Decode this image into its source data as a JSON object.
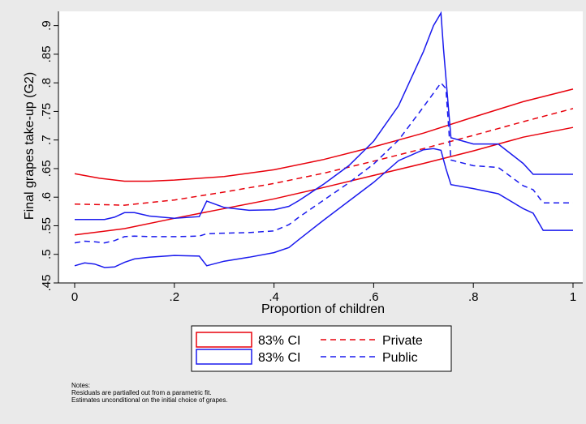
{
  "chart_data": {
    "type": "line",
    "xlabel": "Proportion of children",
    "ylabel": "Final grapes take-up (G2)",
    "xlim": [
      0,
      1
    ],
    "ylim": [
      0.45,
      0.925
    ],
    "xticks": [
      0,
      0.2,
      0.4,
      0.6,
      0.8,
      1
    ],
    "xtick_labels": [
      "0",
      ".2",
      ".4",
      ".6",
      ".8",
      "1"
    ],
    "yticks": [
      0.45,
      0.5,
      0.55,
      0.6,
      0.65,
      0.7,
      0.75,
      0.8,
      0.85,
      0.9
    ],
    "ytick_labels": [
      ".45",
      ".5",
      ".55",
      ".6",
      ".65",
      ".7",
      ".75",
      ".8",
      ".85",
      ".9"
    ],
    "grid": false,
    "series": [
      {
        "name": "Private",
        "role": "estimate",
        "color": "#e8000b",
        "dash": true,
        "x": [
          0,
          0.1,
          0.2,
          0.3,
          0.4,
          0.5,
          0.6,
          0.7,
          0.8,
          0.9,
          1.0
        ],
        "y": [
          0.588,
          0.586,
          0.595,
          0.609,
          0.624,
          0.642,
          0.663,
          0.685,
          0.708,
          0.732,
          0.755
        ]
      },
      {
        "name": "83% CI",
        "role": "ci-upper",
        "group": "Private",
        "color": "#e8000b",
        "x": [
          0,
          0.05,
          0.1,
          0.15,
          0.2,
          0.3,
          0.4,
          0.5,
          0.6,
          0.7,
          0.8,
          0.9,
          1.0
        ],
        "y": [
          0.641,
          0.633,
          0.628,
          0.628,
          0.63,
          0.636,
          0.648,
          0.666,
          0.688,
          0.712,
          0.74,
          0.767,
          0.789
        ]
      },
      {
        "name": "83% CI",
        "role": "ci-lower",
        "group": "Private",
        "color": "#e8000b",
        "x": [
          0,
          0.1,
          0.2,
          0.3,
          0.4,
          0.5,
          0.6,
          0.7,
          0.8,
          0.9,
          1.0
        ],
        "y": [
          0.534,
          0.545,
          0.563,
          0.58,
          0.597,
          0.617,
          0.638,
          0.659,
          0.681,
          0.705,
          0.722
        ]
      },
      {
        "name": "Public",
        "role": "estimate",
        "color": "#1a1aee",
        "dash": true,
        "x": [
          0,
          0.02,
          0.04,
          0.06,
          0.08,
          0.1,
          0.12,
          0.15,
          0.2,
          0.25,
          0.265,
          0.3,
          0.35,
          0.4,
          0.43,
          0.45,
          0.5,
          0.55,
          0.6,
          0.65,
          0.7,
          0.72,
          0.735,
          0.745,
          0.755,
          0.8,
          0.85,
          0.9,
          0.92,
          0.94,
          1.0
        ],
        "y": [
          0.52,
          0.523,
          0.522,
          0.52,
          0.524,
          0.531,
          0.532,
          0.531,
          0.531,
          0.532,
          0.536,
          0.537,
          0.538,
          0.541,
          0.552,
          0.565,
          0.595,
          0.625,
          0.658,
          0.7,
          0.758,
          0.782,
          0.8,
          0.79,
          0.665,
          0.655,
          0.652,
          0.62,
          0.613,
          0.59,
          0.59
        ]
      },
      {
        "name": "83% CI",
        "role": "ci-upper",
        "group": "Public",
        "color": "#1a1aee",
        "x": [
          0,
          0.06,
          0.08,
          0.1,
          0.12,
          0.15,
          0.2,
          0.25,
          0.265,
          0.3,
          0.35,
          0.4,
          0.43,
          0.45,
          0.5,
          0.55,
          0.6,
          0.65,
          0.7,
          0.72,
          0.735,
          0.74,
          0.755,
          0.8,
          0.85,
          0.9,
          0.92,
          0.94,
          1.0
        ],
        "y": [
          0.561,
          0.561,
          0.565,
          0.573,
          0.573,
          0.567,
          0.563,
          0.566,
          0.593,
          0.582,
          0.577,
          0.578,
          0.584,
          0.594,
          0.623,
          0.655,
          0.698,
          0.76,
          0.855,
          0.9,
          0.922,
          0.86,
          0.704,
          0.693,
          0.693,
          0.659,
          0.64,
          0.64,
          0.64
        ]
      },
      {
        "name": "83% CI",
        "role": "ci-lower",
        "group": "Public",
        "color": "#1a1aee",
        "x": [
          0,
          0.02,
          0.04,
          0.06,
          0.08,
          0.1,
          0.12,
          0.15,
          0.2,
          0.25,
          0.265,
          0.3,
          0.35,
          0.4,
          0.43,
          0.45,
          0.5,
          0.55,
          0.6,
          0.65,
          0.7,
          0.72,
          0.735,
          0.745,
          0.755,
          0.8,
          0.85,
          0.9,
          0.92,
          0.94,
          1.0
        ],
        "y": [
          0.48,
          0.485,
          0.483,
          0.477,
          0.478,
          0.486,
          0.492,
          0.495,
          0.498,
          0.497,
          0.48,
          0.488,
          0.495,
          0.503,
          0.512,
          0.526,
          0.56,
          0.593,
          0.626,
          0.664,
          0.683,
          0.685,
          0.682,
          0.65,
          0.622,
          0.615,
          0.606,
          0.58,
          0.572,
          0.542,
          0.542
        ]
      }
    ],
    "legend": {
      "placement": "bottom",
      "items": [
        {
          "label": "83% CI",
          "color": "#e8000b",
          "style": "box"
        },
        {
          "label": "Private",
          "color": "#e8000b",
          "style": "dash"
        },
        {
          "label": "83% CI",
          "color": "#1a1aee",
          "style": "box"
        },
        {
          "label": "Public",
          "color": "#1a1aee",
          "style": "dash"
        }
      ]
    },
    "notes": [
      "Notes:",
      "Residuals are partialled out from a parametric fit.",
      "Estimates unconditional on the initial choice of grapes."
    ]
  }
}
